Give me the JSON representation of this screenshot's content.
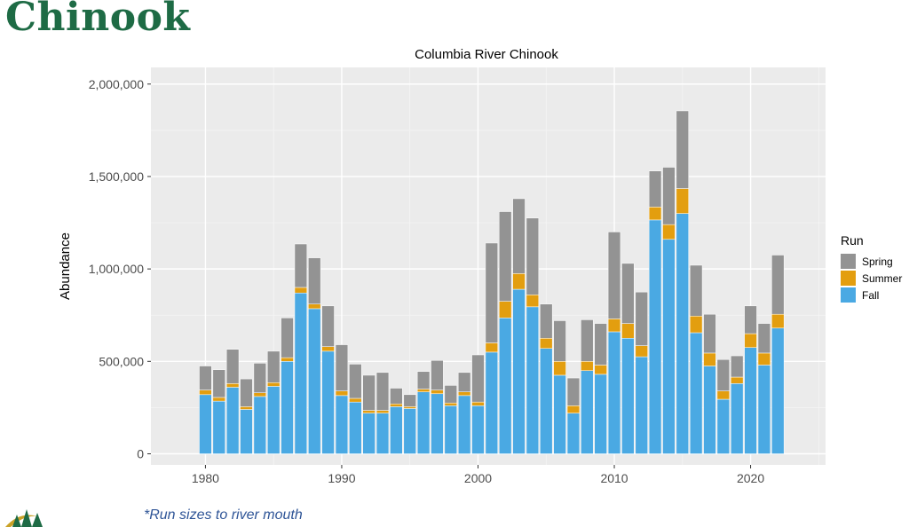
{
  "slide": {
    "title": "Chinook",
    "footnote": "*Run sizes to river mouth",
    "title_color": "#1e6b45",
    "footnote_color": "#2f5597"
  },
  "chart_data": {
    "type": "bar",
    "stacked": true,
    "title": "Columbia River Chinook",
    "xlabel": "",
    "ylabel": "Abundance",
    "xlim": [
      1976,
      2025.5
    ],
    "ylim": [
      -60000,
      2090000
    ],
    "x_ticks": [
      1980,
      1990,
      2000,
      2010,
      2020
    ],
    "y_ticks": [
      0,
      500000,
      1000000,
      1500000,
      2000000
    ],
    "y_tick_labels": [
      "0",
      "500,000",
      "1,000,000",
      "1,500,000",
      "2,000,000"
    ],
    "grid": true,
    "legend": {
      "title": "Run",
      "position": "right"
    },
    "x": [
      1980,
      1981,
      1982,
      1983,
      1984,
      1985,
      1986,
      1987,
      1988,
      1989,
      1990,
      1991,
      1992,
      1993,
      1994,
      1995,
      1996,
      1997,
      1998,
      1999,
      2000,
      2001,
      2002,
      2003,
      2004,
      2005,
      2006,
      2007,
      2008,
      2009,
      2010,
      2011,
      2012,
      2013,
      2014,
      2015,
      2016,
      2017,
      2018,
      2019,
      2020,
      2021,
      2022
    ],
    "series": [
      {
        "name": "Fall",
        "color": "#4aa9e3",
        "values": [
          320000,
          285000,
          360000,
          240000,
          310000,
          365000,
          500000,
          870000,
          785000,
          555000,
          315000,
          280000,
          220000,
          220000,
          255000,
          245000,
          335000,
          325000,
          260000,
          315000,
          260000,
          550000,
          735000,
          890000,
          795000,
          570000,
          425000,
          220000,
          450000,
          430000,
          660000,
          625000,
          525000,
          1265000,
          1160000,
          1300000,
          655000,
          475000,
          295000,
          380000,
          575000,
          480000,
          680000
        ]
      },
      {
        "name": "Summer",
        "color": "#e39e0f",
        "values": [
          25000,
          20000,
          20000,
          15000,
          20000,
          20000,
          20000,
          30000,
          25000,
          25000,
          25000,
          20000,
          15000,
          15000,
          15000,
          10000,
          15000,
          20000,
          15000,
          20000,
          20000,
          50000,
          90000,
          85000,
          65000,
          55000,
          75000,
          40000,
          50000,
          50000,
          70000,
          80000,
          60000,
          70000,
          80000,
          135000,
          90000,
          70000,
          45000,
          35000,
          75000,
          65000,
          75000
        ]
      },
      {
        "name": "Spring",
        "color": "#939393",
        "values": [
          130000,
          150000,
          185000,
          150000,
          160000,
          170000,
          215000,
          235000,
          250000,
          220000,
          250000,
          185000,
          190000,
          205000,
          85000,
          65000,
          95000,
          160000,
          95000,
          105000,
          255000,
          540000,
          485000,
          405000,
          415000,
          185000,
          220000,
          150000,
          225000,
          225000,
          470000,
          325000,
          290000,
          195000,
          310000,
          420000,
          275000,
          210000,
          170000,
          115000,
          150000,
          160000,
          320000
        ]
      }
    ]
  }
}
